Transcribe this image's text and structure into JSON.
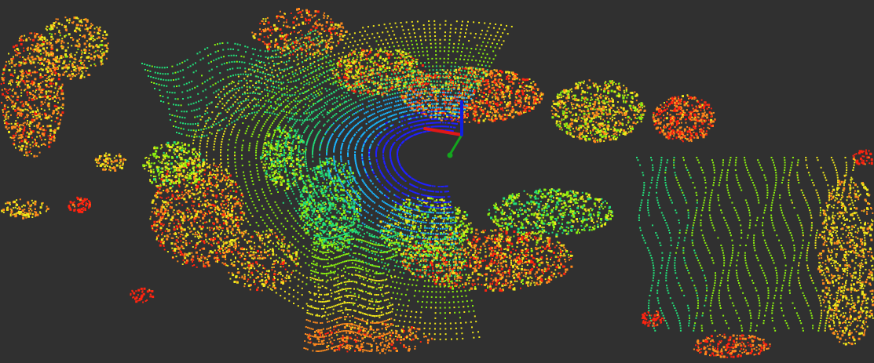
{
  "view": {
    "background_color": "#303030",
    "colormap": [
      "#2020ff",
      "#19b5ff",
      "#22e07a",
      "#8cf20f",
      "#f0e71b",
      "#ff8a1c",
      "#ff2410"
    ],
    "point_style": "dots"
  },
  "axes_marker": {
    "x_axis_color": "#e01818",
    "y_axis_color": "#13a61d",
    "z_axis_color": "#1020e0"
  }
}
